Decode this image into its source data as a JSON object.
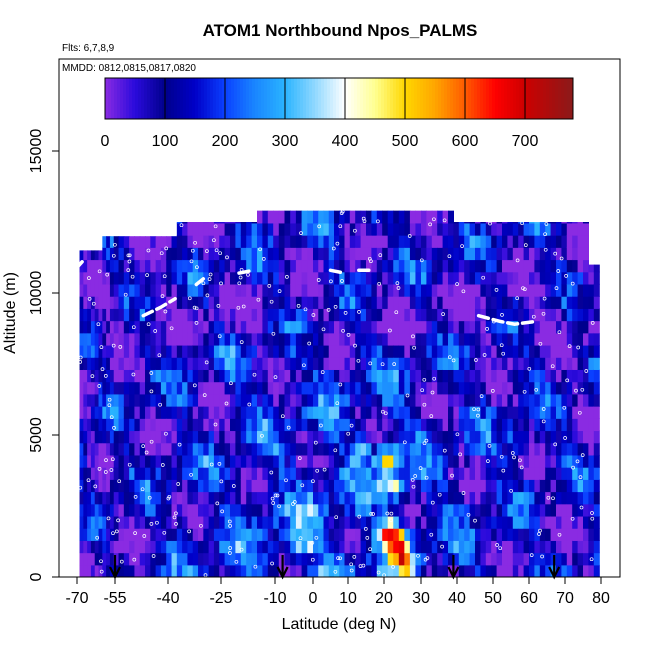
{
  "chart_data": {
    "type": "heatmap",
    "title": "ATOM1 Northbound Npos_PALMS",
    "flights_note": "Flts: 6,7,8,9",
    "dates_note": "MMDD: 0812,0815,0817,0820",
    "xlabel": "Latitude (deg N)",
    "ylabel": "Altitude (m)",
    "xlim": [
      -70,
      80
    ],
    "ylim": [
      0,
      17500
    ],
    "x_ticks": [
      -70,
      -55,
      -40,
      -25,
      -10,
      0,
      10,
      20,
      30,
      40,
      50,
      60,
      70,
      80
    ],
    "y_ticks": [
      0,
      5000,
      10000,
      15000
    ],
    "colorbar": {
      "range": [
        0,
        780
      ],
      "ticks": [
        0,
        100,
        200,
        300,
        400,
        500,
        600,
        700
      ],
      "stops": [
        {
          "v": 0,
          "c": "#8a2be2"
        },
        {
          "v": 50,
          "c": "#2a0adc"
        },
        {
          "v": 100,
          "c": "#00008c"
        },
        {
          "v": 150,
          "c": "#0000c8"
        },
        {
          "v": 200,
          "c": "#0a40ff"
        },
        {
          "v": 250,
          "c": "#1a86ff"
        },
        {
          "v": 300,
          "c": "#2ab4ff"
        },
        {
          "v": 350,
          "c": "#90d8ff"
        },
        {
          "v": 400,
          "c": "#ffffff"
        },
        {
          "v": 450,
          "c": "#ffff90"
        },
        {
          "v": 500,
          "c": "#ffd700"
        },
        {
          "v": 550,
          "c": "#ffa500"
        },
        {
          "v": 600,
          "c": "#ff5a00"
        },
        {
          "v": 650,
          "c": "#ff0000"
        },
        {
          "v": 700,
          "c": "#cc0000"
        },
        {
          "v": 780,
          "c": "#8b1a1a"
        }
      ]
    },
    "profile_markers_lat": [
      -55,
      -8,
      39,
      67
    ],
    "tropopause_segments": [
      [
        [
          -70,
          10900
        ],
        [
          -68,
          11100
        ]
      ],
      [
        [
          -47,
          9200
        ],
        [
          -42,
          9500
        ],
        [
          -38,
          9800
        ]
      ],
      [
        [
          -32,
          10300
        ],
        [
          -30,
          10500
        ]
      ],
      [
        [
          -20,
          10700
        ],
        [
          -16,
          10800
        ]
      ],
      [
        [
          5,
          10800
        ],
        [
          9,
          10700
        ]
      ],
      [
        [
          13,
          10800
        ],
        [
          16,
          10800
        ]
      ],
      [
        [
          46,
          9200
        ],
        [
          52,
          9000
        ],
        [
          56,
          8900
        ],
        [
          62,
          9000
        ]
      ]
    ],
    "upper_bounds": [
      {
        "lat_from": -69,
        "lat_to": -60,
        "alt": 11500
      },
      {
        "lat_from": -60,
        "lat_to": -37,
        "alt": 12000
      },
      {
        "lat_from": -37,
        "lat_to": -15,
        "alt": 12500
      },
      {
        "lat_from": -15,
        "lat_to": 39,
        "alt": 12900
      },
      {
        "lat_from": 39,
        "lat_to": 76,
        "alt": 12500
      },
      {
        "lat_from": 76,
        "lat_to": 80,
        "alt": 11000
      }
    ],
    "hotspots": [
      {
        "lat": 22,
        "alt": 1600,
        "value": 680
      },
      {
        "lat": 21,
        "alt": 4200,
        "value": 560
      },
      {
        "lat": 22,
        "alt": 3200,
        "value": 520
      },
      {
        "lat": 24,
        "alt": 1000,
        "value": 470
      },
      {
        "lat": 26,
        "alt": 500,
        "value": 430
      },
      {
        "lat": 14,
        "alt": 4500,
        "value": 380
      },
      {
        "lat": 57,
        "alt": 4800,
        "value": 360
      },
      {
        "lat": -3,
        "alt": 1200,
        "value": 380
      }
    ]
  }
}
